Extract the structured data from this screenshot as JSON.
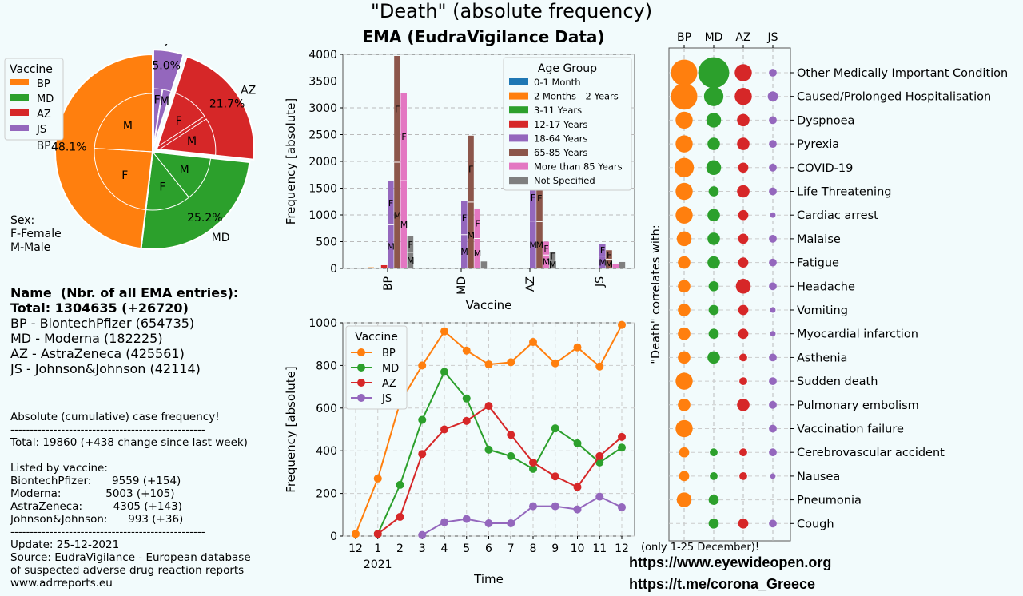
{
  "header": {
    "title": "\"Death\" (absolute frequency)",
    "subtitle": "EMA (EudraVigilance Data)"
  },
  "colors": {
    "BP": "#ff7f0e",
    "MD": "#2ca02c",
    "AZ": "#d62728",
    "JS": "#9467bd",
    "age": [
      "#1f77b4",
      "#ff7f0e",
      "#2ca02c",
      "#d62728",
      "#9467bd",
      "#8c564b",
      "#e377c2",
      "#7f7f7f"
    ]
  },
  "pie_legend": {
    "title": "Vaccine",
    "items": [
      "BP",
      "MD",
      "AZ",
      "JS"
    ]
  },
  "sex_note": [
    "Sex:",
    "F-Female",
    "M-Male"
  ],
  "info": {
    "name_line": "Name  (Nbr. of all EMA entries):",
    "total_line": "Total: 1304635 (+26720)",
    "lines": [
      "BP - BiontechPfizer (654735)",
      "MD - Moderna (182225)",
      "AZ - AstraZeneca (425561)",
      "JS - Johnson&Johnson (42114)"
    ]
  },
  "stats": {
    "lines": [
      "Absolute (cumulative) case frequency!",
      "--------------------------------------------------",
      "Total: 19860 (+438 change since last week)",
      "",
      "Listed by vaccine:",
      "BiontechPfizer:      9559 (+154)",
      "Moderna:             5003 (+105)",
      "AstraZeneca:         4305 (+143)",
      "Johnson&Johnson:      993 (+36)",
      "--------------------------------------------------",
      "Update: 25-12-2021",
      "Source: EudraVigilance - European database",
      "of suspected adverse drug reaction reports",
      "www.adrreports.eu"
    ]
  },
  "footer": {
    "note": "(only 1-25 December)!",
    "url1": "https://www.eyewideopen.org",
    "url2": "https://t.me/corona_Greece"
  },
  "chart_data": [
    {
      "type": "pie",
      "slices": [
        {
          "label": "BP",
          "percent": 48.1,
          "pct_label": "48.1%",
          "inner": [
            {
              "sex": "F",
              "share": 0.5
            },
            {
              "sex": "M",
              "share": 0.5
            }
          ]
        },
        {
          "label": "MD",
          "percent": 25.2,
          "pct_label": "25.2%",
          "inner": [
            {
              "sex": "M",
              "share": 0.5
            },
            {
              "sex": "F",
              "share": 0.5
            }
          ]
        },
        {
          "label": "AZ",
          "percent": 21.7,
          "pct_label": "21.7%",
          "inner": [
            {
              "sex": "F",
              "share": 0.5
            },
            {
              "sex": "M",
              "share": 0.5
            }
          ]
        },
        {
          "label": "JS",
          "percent": 5.0,
          "pct_label": "5.0%",
          "inner": [
            {
              "sex": "F",
              "share": 0.5
            },
            {
              "sex": "M",
              "share": 0.5
            }
          ]
        }
      ]
    },
    {
      "type": "bar",
      "xlabel": "Vaccine",
      "ylabel": "Frequency [absolute]",
      "ylim": [
        0,
        4000
      ],
      "yticks": [
        "0",
        "500",
        "1000",
        "1500",
        "2000",
        "2500",
        "3000",
        "3500",
        "4000"
      ],
      "categories": [
        "BP",
        "MD",
        "AZ",
        "JS"
      ],
      "legend_title": "Age Group",
      "series": [
        {
          "name": "0-1 Month",
          "values": [
            10,
            2,
            0,
            0
          ]
        },
        {
          "name": "2 Months - 2 Years",
          "values": [
            20,
            5,
            3,
            1
          ]
        },
        {
          "name": "3-11 Years",
          "values": [
            15,
            3,
            2,
            1
          ]
        },
        {
          "name": "12-17 Years",
          "values": [
            60,
            10,
            5,
            5
          ]
        },
        {
          "name": "18-64 Years",
          "values": [
            1630,
            1260,
            1770,
            460
          ]
        },
        {
          "name": "65-85 Years",
          "values": [
            3970,
            2480,
            1750,
            340
          ]
        },
        {
          "name": "More than 85 Years",
          "values": [
            3280,
            1120,
            500,
            80
          ]
        },
        {
          "name": "Not Specified",
          "values": [
            600,
            130,
            310,
            120
          ]
        }
      ],
      "split_labels": [
        "F",
        "M"
      ]
    },
    {
      "type": "line",
      "xlabel": "Time",
      "ylabel": "Frequency [absolute]",
      "ylim": [
        0,
        1000
      ],
      "yticks": [
        "0",
        "200",
        "400",
        "600",
        "800",
        "1000"
      ],
      "xticks": [
        "12",
        "1",
        "2",
        "3",
        "4",
        "5",
        "6",
        "7",
        "8",
        "9",
        "10",
        "11",
        "12"
      ],
      "year_label": "2021",
      "legend_title": "Vaccine",
      "series": [
        {
          "name": "BP",
          "start": 0,
          "values": [
            10,
            270,
            625,
            800,
            960,
            870,
            805,
            815,
            910,
            810,
            885,
            795,
            990
          ]
        },
        {
          "name": "MD",
          "start": 1,
          "values": [
            10,
            240,
            545,
            770,
            645,
            405,
            375,
            315,
            505,
            435,
            345,
            415
          ]
        },
        {
          "name": "AZ",
          "start": 1,
          "values": [
            10,
            90,
            385,
            500,
            540,
            610,
            475,
            345,
            280,
            230,
            375,
            465
          ]
        },
        {
          "name": "JS",
          "start": 3,
          "values": [
            5,
            65,
            80,
            60,
            60,
            140,
            140,
            125,
            185,
            135
          ]
        }
      ]
    },
    {
      "type": "scatter",
      "ylabel": "\"Death\" correlates with:",
      "columns": [
        "BP",
        "MD",
        "AZ",
        "JS"
      ],
      "rows": [
        {
          "name": "Other Medically Important Condition",
          "sizes": [
            10,
            12,
            6,
            2
          ]
        },
        {
          "name": "Caused/Prolonged Hospitalisation",
          "sizes": [
            10,
            7,
            6,
            3
          ]
        },
        {
          "name": "Dyspnoea",
          "sizes": [
            6,
            5,
            4,
            2
          ]
        },
        {
          "name": "Pyrexia",
          "sizes": [
            6,
            4,
            4,
            2
          ]
        },
        {
          "name": "COVID-19",
          "sizes": [
            7,
            5,
            3,
            2
          ]
        },
        {
          "name": "Life Threatening",
          "sizes": [
            6,
            3,
            4,
            2
          ]
        },
        {
          "name": "Cardiac arrest",
          "sizes": [
            6,
            4,
            3,
            1
          ]
        },
        {
          "name": "Malaise",
          "sizes": [
            5,
            4,
            3,
            2
          ]
        },
        {
          "name": "Fatigue",
          "sizes": [
            4,
            4,
            3,
            2
          ]
        },
        {
          "name": "Headache",
          "sizes": [
            4,
            3,
            5,
            2
          ]
        },
        {
          "name": "Vomiting",
          "sizes": [
            4,
            3,
            3,
            1
          ]
        },
        {
          "name": "Myocardial infarction",
          "sizes": [
            4,
            3,
            3,
            1
          ]
        },
        {
          "name": "Asthenia",
          "sizes": [
            4,
            4,
            2,
            2
          ]
        },
        {
          "name": "Sudden death",
          "sizes": [
            6,
            0,
            2,
            2
          ]
        },
        {
          "name": "Pulmonary embolism",
          "sizes": [
            4,
            0,
            4,
            2
          ]
        },
        {
          "name": "Vaccination failure",
          "sizes": [
            6,
            0,
            0,
            2
          ]
        },
        {
          "name": "Cerebrovascular accident",
          "sizes": [
            3,
            2,
            2,
            2
          ]
        },
        {
          "name": "Nausea",
          "sizes": [
            3,
            2,
            2,
            1
          ]
        },
        {
          "name": "Pneumonia",
          "sizes": [
            5,
            3,
            0,
            0
          ]
        },
        {
          "name": "Cough",
          "sizes": [
            0,
            3,
            3,
            2
          ]
        }
      ]
    }
  ]
}
